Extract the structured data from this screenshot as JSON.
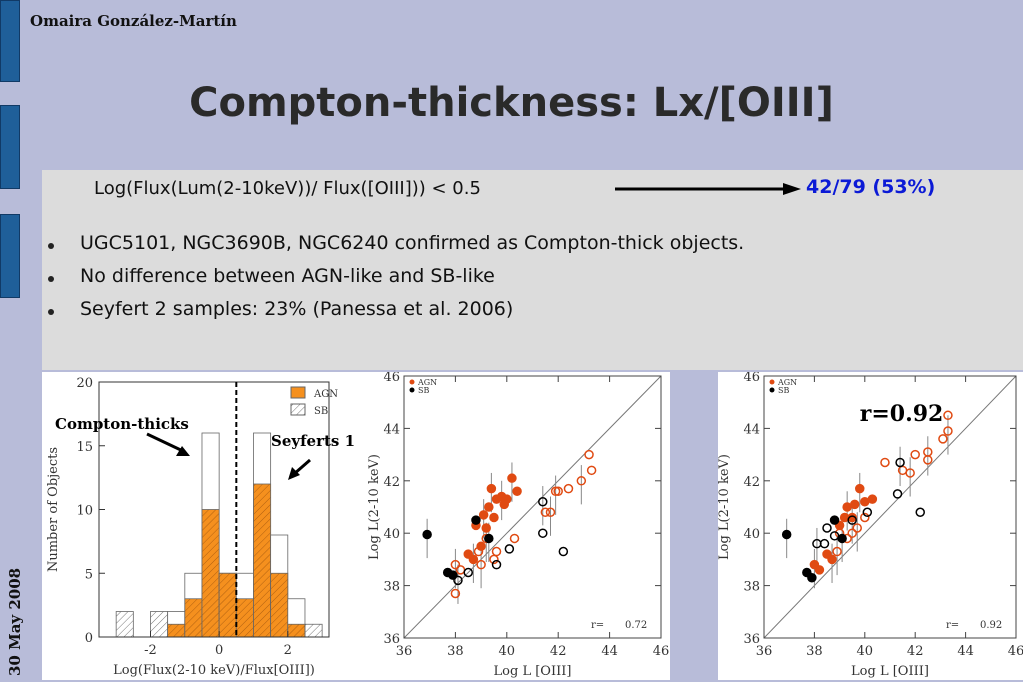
{
  "header": {
    "author": "Omaira González-Martín",
    "date": "30 May 2008"
  },
  "slide": {
    "title": "Compton-thickness: Lx/[OIII]",
    "criterion": "Log(Flux(Lum(2-10keV))/ Flux([OIII])) < 0.5",
    "ratio": "42/79 (53%)",
    "bullets": [
      "UGC5101, NGC3690B, NGC6240 confirmed as Compton-thick objects.",
      "No difference between AGN-like and SB-like",
      "Seyfert 2 samples: 23% (Panessa et al. 2006)"
    ]
  },
  "colors": {
    "agn": "#f5901e",
    "agn_points": "#e04a12",
    "sb_points": "#000000",
    "accent": "#0b1ad6"
  },
  "chart_data": [
    {
      "type": "bar",
      "xlabel": "Log(Flux(2-10 keV)/Flux[OIII])",
      "ylabel": "Number of Objects",
      "xlim": [
        -3.5,
        3.2
      ],
      "ylim": [
        0,
        20
      ],
      "xticks": [
        "-2",
        "0",
        "2"
      ],
      "yticks": [
        "0",
        "5",
        "10",
        "15",
        "20"
      ],
      "bin_width": 0.5,
      "bin_starts": [
        -3.0,
        -2.0,
        -1.5,
        -1.0,
        -0.5,
        0.0,
        0.5,
        1.0,
        1.5,
        2.0,
        2.5
      ],
      "series": [
        {
          "name": "AGN",
          "values": [
            0,
            0,
            1,
            3,
            10,
            5,
            3,
            12,
            5,
            1,
            0
          ]
        },
        {
          "name": "SB",
          "values": [
            2,
            2,
            2,
            5,
            16,
            5,
            5,
            16,
            8,
            3,
            1
          ]
        }
      ],
      "divider_x": 0.5,
      "annotations": [
        "Compton-thicks",
        "Seyferts 1"
      ]
    },
    {
      "type": "scatter",
      "xlabel": "Log L [OIII]",
      "ylabel": "Log L(2-10 keV)",
      "xlim": [
        36,
        46
      ],
      "ylim": [
        36,
        46
      ],
      "xticks": [
        "36",
        "38",
        "40",
        "42",
        "44",
        "46"
      ],
      "yticks": [
        "36",
        "38",
        "40",
        "42",
        "44",
        "46"
      ],
      "legend": [
        "AGN",
        "SB"
      ],
      "legend_position": "top-left",
      "r_label": "r=",
      "r_value": "0.72",
      "series": [
        {
          "name": "AGN",
          "points": [
            [
              38.0,
              38.8
            ],
            [
              38.2,
              38.6
            ],
            [
              38.5,
              39.2
            ],
            [
              38.7,
              39.0
            ],
            [
              38.8,
              40.3
            ],
            [
              39.0,
              39.5
            ],
            [
              39.1,
              40.7
            ],
            [
              39.2,
              40.2
            ],
            [
              39.3,
              41.0
            ],
            [
              39.4,
              41.7
            ],
            [
              39.5,
              40.6
            ],
            [
              39.6,
              41.3
            ],
            [
              39.8,
              41.4
            ],
            [
              39.9,
              41.1
            ],
            [
              40.0,
              41.3
            ],
            [
              40.2,
              42.1
            ],
            [
              40.4,
              41.6
            ],
            [
              38.9,
              39.3
            ],
            [
              39.2,
              39.8
            ],
            [
              39.6,
              39.3
            ],
            [
              38.0,
              37.7
            ],
            [
              39.0,
              38.8
            ],
            [
              40.3,
              39.8
            ],
            [
              41.5,
              40.8
            ],
            [
              41.7,
              40.8
            ],
            [
              42.0,
              41.6
            ],
            [
              42.4,
              41.7
            ],
            [
              42.9,
              42.0
            ],
            [
              43.2,
              43.0
            ],
            [
              43.3,
              42.4
            ],
            [
              41.9,
              41.6
            ],
            [
              39.5,
              39.0
            ]
          ],
          "filled": [
            false,
            false,
            true,
            true,
            true,
            true,
            true,
            true,
            true,
            true,
            true,
            true,
            true,
            true,
            true,
            true,
            true,
            false,
            false,
            false,
            false,
            false,
            false,
            false,
            false,
            false,
            false,
            false,
            false,
            false,
            false,
            false
          ]
        },
        {
          "name": "SB",
          "points": [
            [
              36.9,
              39.95
            ],
            [
              37.7,
              38.5
            ],
            [
              37.9,
              38.4
            ],
            [
              38.1,
              38.2
            ],
            [
              38.5,
              38.5
            ],
            [
              38.8,
              40.5
            ],
            [
              39.3,
              39.8
            ],
            [
              39.6,
              38.8
            ],
            [
              40.1,
              39.4
            ],
            [
              41.4,
              41.2
            ],
            [
              41.4,
              40.0
            ],
            [
              42.2,
              39.3
            ]
          ],
          "filled": [
            true,
            true,
            true,
            false,
            false,
            true,
            true,
            false,
            false,
            false,
            false,
            false
          ]
        }
      ]
    },
    {
      "type": "scatter",
      "xlabel": "Log L [OIII]",
      "ylabel": "Log L(2-10 keV)",
      "xlim": [
        36,
        46
      ],
      "ylim": [
        36,
        46
      ],
      "xticks": [
        "36",
        "38",
        "40",
        "42",
        "44",
        "46"
      ],
      "yticks": [
        "36",
        "38",
        "40",
        "42",
        "44",
        "46"
      ],
      "legend": [
        "AGN",
        "SB"
      ],
      "legend_position": "top-left",
      "r_label": "r=",
      "r_value": "0.92",
      "big_label": "r=0.92",
      "series": [
        {
          "name": "AGN",
          "points": [
            [
              38.0,
              38.8
            ],
            [
              38.2,
              38.6
            ],
            [
              38.5,
              39.2
            ],
            [
              38.7,
              39.0
            ],
            [
              39.0,
              40.3
            ],
            [
              39.2,
              40.6
            ],
            [
              39.3,
              41.0
            ],
            [
              39.5,
              40.6
            ],
            [
              39.6,
              41.1
            ],
            [
              39.8,
              41.7
            ],
            [
              40.0,
              41.2
            ],
            [
              40.3,
              41.3
            ],
            [
              38.9,
              39.3
            ],
            [
              39.3,
              39.8
            ],
            [
              39.5,
              40.0
            ],
            [
              39.7,
              40.2
            ],
            [
              40.8,
              42.7
            ],
            [
              41.5,
              42.4
            ],
            [
              41.8,
              42.3
            ],
            [
              42.0,
              43.0
            ],
            [
              42.5,
              42.8
            ],
            [
              42.5,
              43.1
            ],
            [
              43.1,
              43.6
            ],
            [
              43.3,
              44.5
            ],
            [
              43.3,
              43.9
            ],
            [
              40.0,
              40.6
            ],
            [
              39.0,
              40.0
            ]
          ],
          "filled": [
            true,
            true,
            true,
            true,
            true,
            true,
            true,
            true,
            true,
            true,
            true,
            true,
            false,
            false,
            false,
            false,
            false,
            false,
            false,
            false,
            false,
            false,
            false,
            false,
            false,
            false,
            false
          ]
        },
        {
          "name": "SB",
          "points": [
            [
              36.9,
              39.95
            ],
            [
              37.7,
              38.5
            ],
            [
              37.9,
              38.3
            ],
            [
              38.1,
              39.6
            ],
            [
              38.5,
              40.2
            ],
            [
              38.8,
              40.5
            ],
            [
              39.1,
              39.8
            ],
            [
              38.4,
              39.6
            ],
            [
              38.8,
              39.9
            ],
            [
              39.5,
              40.5
            ],
            [
              40.1,
              40.8
            ],
            [
              41.3,
              41.5
            ],
            [
              41.4,
              42.7
            ],
            [
              42.2,
              40.8
            ]
          ],
          "filled": [
            true,
            true,
            true,
            false,
            false,
            true,
            true,
            false,
            false,
            false,
            false,
            false,
            false,
            false
          ]
        }
      ]
    }
  ]
}
